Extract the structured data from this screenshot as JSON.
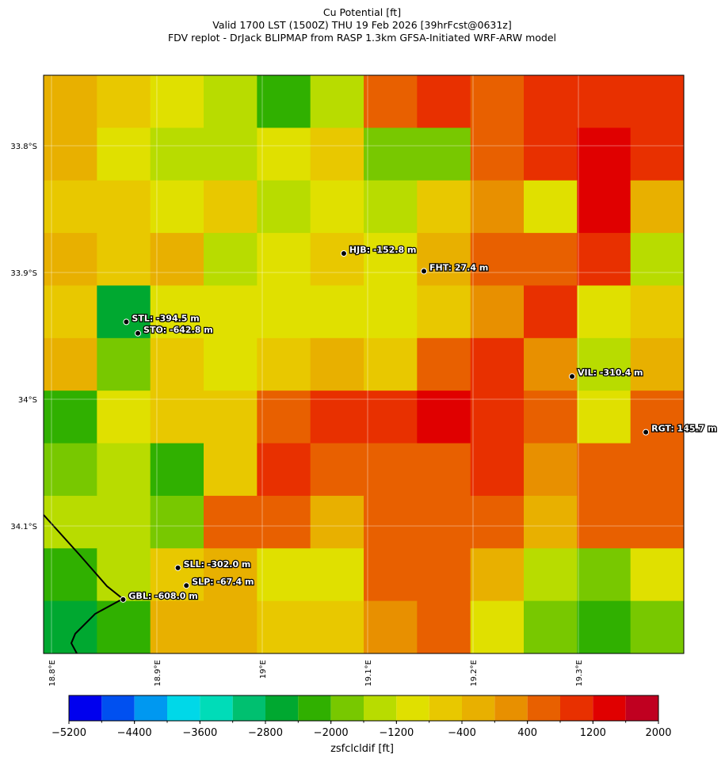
{
  "chart_data": {
    "type": "map",
    "title": [
      "Cu Potential [ft]",
      "Valid 1700 LST (1500Z) THU 19 Feb 2026 [39hrFcst@0631z]",
      "FDV replot - DrJack BLIPMAP from RASP 1.3km GFSA-Initiated WRF-ARW model"
    ],
    "xlim": [
      18.7925,
      19.4
    ],
    "ylim": [
      -34.2006,
      -33.7444
    ],
    "xticks": [
      {
        "value": 18.8,
        "label": "18.8°E"
      },
      {
        "value": 18.9,
        "label": "18.9°E"
      },
      {
        "value": 19.0,
        "label": "19°E"
      },
      {
        "value": 19.1,
        "label": "19.1°E"
      },
      {
        "value": 19.2,
        "label": "19.2°E"
      },
      {
        "value": 19.3,
        "label": "19.3°E"
      }
    ],
    "yticks": [
      {
        "value": -33.8,
        "label": "33.8°S"
      },
      {
        "value": -33.9,
        "label": "33.9°S"
      },
      {
        "value": -34.0,
        "label": "34°S"
      },
      {
        "value": -34.1,
        "label": "34.1°S"
      }
    ],
    "grid": true,
    "field": {
      "values": [
        [
          -400,
          -800,
          -1200,
          -1600,
          -2400,
          -1600,
          400,
          800,
          400,
          800,
          800,
          800
        ],
        [
          -400,
          -1200,
          -1600,
          -1600,
          -1200,
          -800,
          -2000,
          -2000,
          400,
          800,
          1200,
          800
        ],
        [
          -800,
          -800,
          -1200,
          -800,
          -1600,
          -1200,
          -1600,
          -800,
          0,
          -1200,
          1200,
          -400
        ],
        [
          -400,
          -800,
          -400,
          -1600,
          -1200,
          -800,
          -1200,
          -400,
          400,
          400,
          800,
          -1600
        ],
        [
          -800,
          -2800,
          -1200,
          -1200,
          -1200,
          -1200,
          -1200,
          -800,
          0,
          800,
          -1200,
          -800
        ],
        [
          -400,
          -2000,
          -800,
          -1200,
          -800,
          -400,
          -800,
          400,
          800,
          0,
          -1600,
          -400
        ],
        [
          -2400,
          -1200,
          -800,
          -800,
          400,
          800,
          800,
          1200,
          800,
          400,
          -1200,
          400
        ],
        [
          -2000,
          -1600,
          -2400,
          -800,
          800,
          400,
          400,
          400,
          800,
          0,
          400,
          400
        ],
        [
          -1600,
          -1600,
          -2000,
          400,
          400,
          -400,
          400,
          400,
          400,
          -400,
          400,
          400
        ],
        [
          -2400,
          -1600,
          -800,
          -400,
          -1200,
          -1200,
          400,
          400,
          -400,
          -1600,
          -2000,
          -1200
        ],
        [
          -2800,
          -2400,
          -400,
          -400,
          -800,
          -800,
          0,
          400,
          -1200,
          -2000,
          -2400,
          -2000
        ]
      ]
    },
    "stations": {
      "labels": [
        "HJB: -152.8 m",
        "FHT: 27.4 m",
        "STL: -394.5 m",
        "STO: -642.8 m",
        "VIL: -310.4 m",
        "RGT: 145.7 m",
        "SLL: -302.0 m",
        "SLP: -67.4 m",
        "GBL: -608.0 m"
      ],
      "lon": [
        19.0774,
        19.1534,
        18.871,
        18.882,
        19.294,
        19.364,
        18.92,
        18.928,
        18.868
      ],
      "lat": [
        -33.885,
        -33.899,
        -33.939,
        -33.948,
        -33.982,
        -34.026,
        -34.133,
        -34.147,
        -34.158
      ]
    },
    "colorbar": {
      "label": "zsfclcldif [ft]",
      "boundaries": [
        -5200,
        -4800,
        -4400,
        -4000,
        -3600,
        -3200,
        -2800,
        -2400,
        -2000,
        -1600,
        -1200,
        -800,
        -400,
        0,
        400,
        800,
        1200,
        1600,
        2000
      ],
      "colors": [
        "#0000ee",
        "#0050f0",
        "#0098f0",
        "#00d8e8",
        "#00dcb8",
        "#00c070",
        "#00a830",
        "#30b000",
        "#78c800",
        "#b8dc00",
        "#e0e000",
        "#e8c800",
        "#e8b000",
        "#e89000",
        "#e86000",
        "#e83000",
        "#e00000",
        "#c00020"
      ],
      "ticks": [
        {
          "value": -5200,
          "label": "−5200"
        },
        {
          "value": -4400,
          "label": "−4400"
        },
        {
          "value": -3600,
          "label": "−3600"
        },
        {
          "value": -2800,
          "label": "−2800"
        },
        {
          "value": -2000,
          "label": "−2000"
        },
        {
          "value": -1200,
          "label": "−1200"
        },
        {
          "value": -400,
          "label": "−400"
        },
        400,
        1200,
        2000
      ]
    }
  }
}
